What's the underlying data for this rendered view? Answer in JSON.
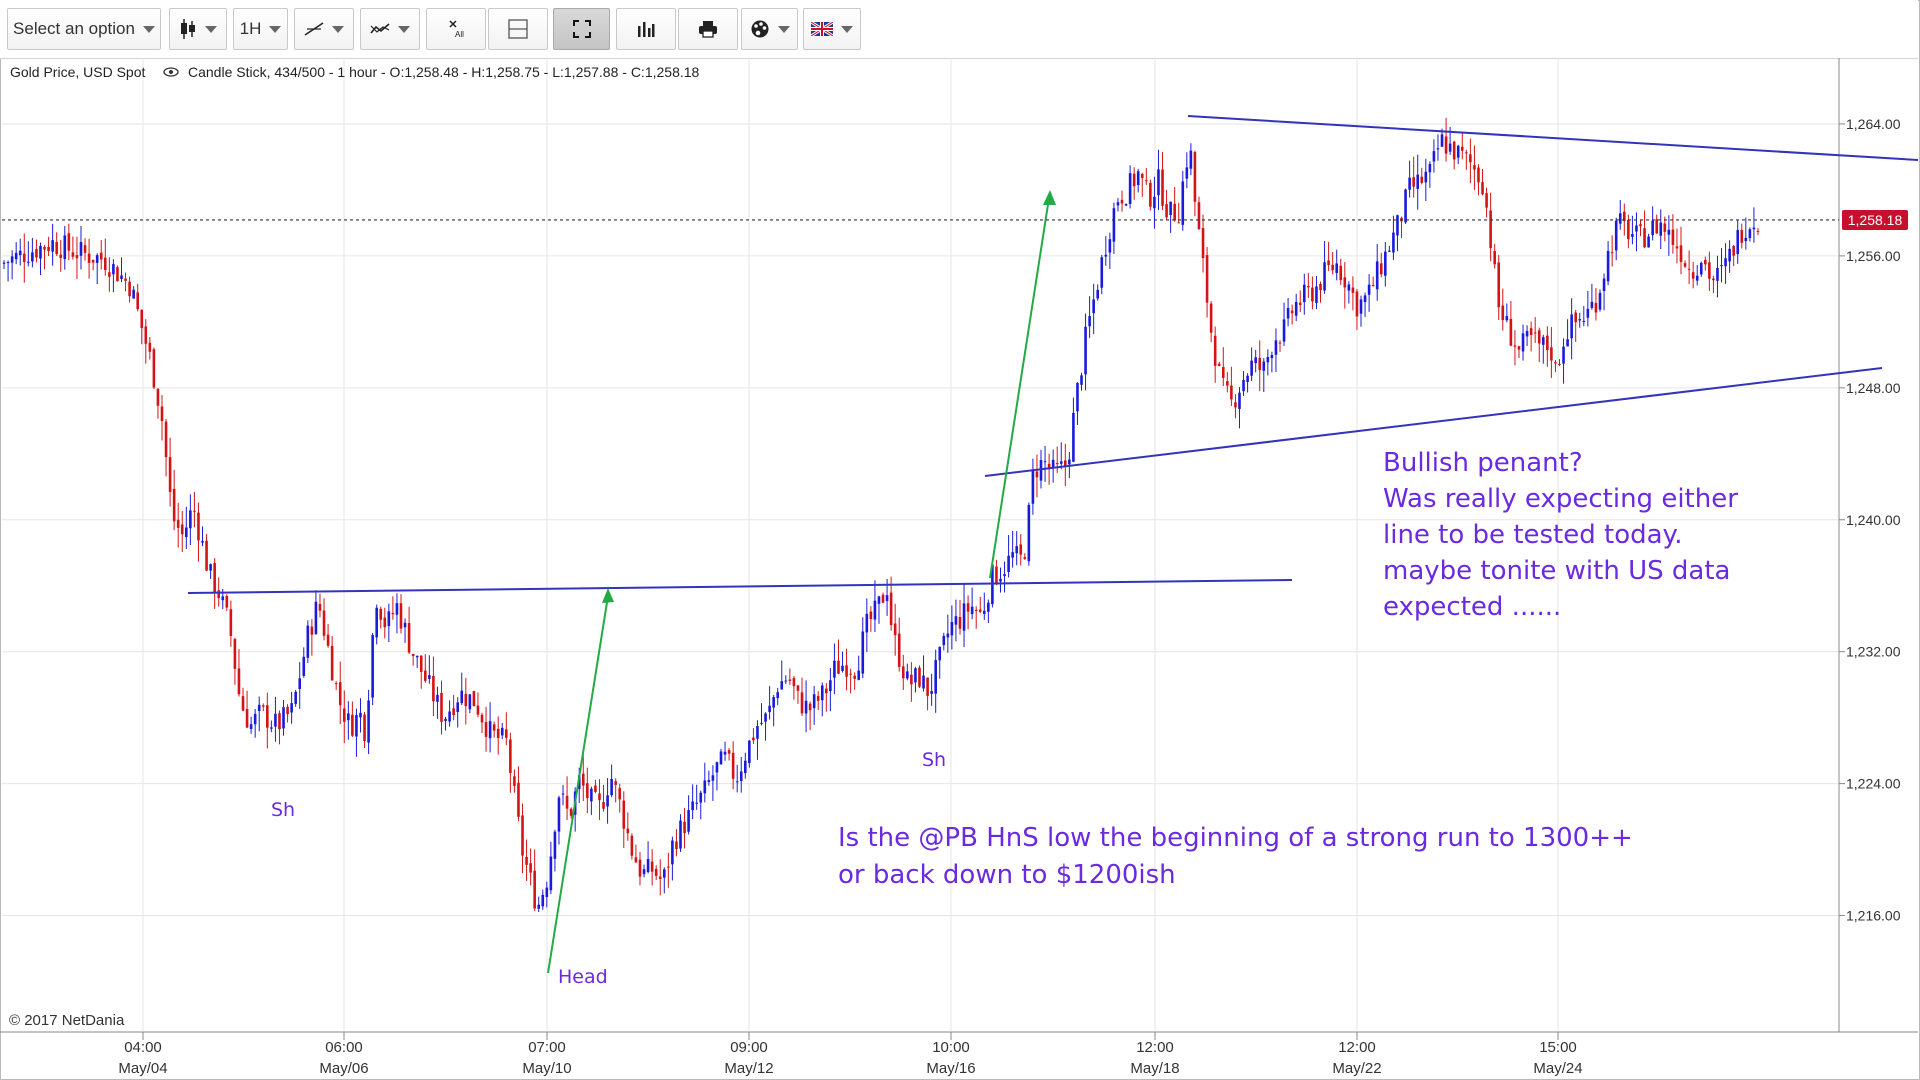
{
  "toolbar": {
    "select_label": "Select an option",
    "interval_label": "1H",
    "icons": [
      "candlestick-type-icon",
      "trendline-icon",
      "indicator-icon",
      "remove-all-icon",
      "crosshair-icon",
      "fullscreen-icon",
      "volume-icon",
      "print-icon",
      "palette-icon",
      "flag-uk-icon"
    ],
    "remove_all_sub": "All"
  },
  "header": {
    "instrument": "Gold Price, USD Spot",
    "info": "Candle Stick, 434/500 - 1 hour - O:1,258.48 - H:1,258.75 - L:1,257.88 - C:1,258.18"
  },
  "copyright": "© 2017 NetDania",
  "chart_data": {
    "type": "candlestick",
    "ylim": [
      1209,
      1268
    ],
    "y_ticks": [
      "1,216.00",
      "1,224.00",
      "1,232.00",
      "1,240.00",
      "1,248.00",
      "1,256.00",
      "1,264.00"
    ],
    "y_tick_values": [
      1216,
      1224,
      1232,
      1240,
      1248,
      1256,
      1264
    ],
    "x_ticks": [
      {
        "time": "04:00",
        "date": "May/04"
      },
      {
        "time": "06:00",
        "date": "May/06"
      },
      {
        "time": "07:00",
        "date": "May/10"
      },
      {
        "time": "09:00",
        "date": "May/12"
      },
      {
        "time": "10:00",
        "date": "May/16"
      },
      {
        "time": "12:00",
        "date": "May/18"
      },
      {
        "time": "12:00",
        "date": "May/22"
      },
      {
        "time": "15:00",
        "date": "May/24"
      }
    ],
    "last_price": "1,258.18",
    "last_price_value": 1258.18,
    "colors": {
      "up": "#1a1adc",
      "down": "#d41414",
      "line": "#3333bb",
      "arrow": "#22aa44",
      "annotation": "#6a2ae0",
      "price_tag": "#c8102e"
    },
    "price_path": [
      [
        0,
        1255.5
      ],
      [
        10,
        1256.2
      ],
      [
        20,
        1256.8
      ],
      [
        30,
        1256.2
      ],
      [
        40,
        1255.8
      ],
      [
        50,
        1254.2
      ],
      [
        58,
        1249.5
      ],
      [
        62,
        1246.2
      ],
      [
        66,
        1240.2
      ],
      [
        70,
        1239.0
      ],
      [
        74,
        1240.8
      ],
      [
        78,
        1238.2
      ],
      [
        80,
        1236.8
      ],
      [
        84,
        1235.5
      ],
      [
        88,
        1233.5
      ],
      [
        92,
        1229.0
      ],
      [
        96,
        1227.5
      ],
      [
        100,
        1228.3
      ],
      [
        106,
        1227.5
      ],
      [
        112,
        1228.4
      ],
      [
        118,
        1233.0
      ],
      [
        122,
        1235.0
      ],
      [
        126,
        1232.0
      ],
      [
        130,
        1229.0
      ],
      [
        134,
        1227.5
      ],
      [
        138,
        1228.2
      ],
      [
        140,
        1227.2
      ],
      [
        144,
        1235.5
      ],
      [
        148,
        1233.5
      ],
      [
        152,
        1234.8
      ],
      [
        158,
        1232.0
      ],
      [
        164,
        1230.0
      ],
      [
        170,
        1228.0
      ],
      [
        176,
        1229.5
      ],
      [
        182,
        1229.0
      ],
      [
        188,
        1227.0
      ],
      [
        194,
        1226.5
      ],
      [
        200,
        1220.0
      ],
      [
        206,
        1216.5
      ],
      [
        210,
        1218.5
      ],
      [
        214,
        1223.5
      ],
      [
        218,
        1222.0
      ],
      [
        222,
        1224.2
      ],
      [
        226,
        1223.0
      ],
      [
        230,
        1222.5
      ],
      [
        234,
        1224.5
      ],
      [
        238,
        1222.5
      ],
      [
        242,
        1220.0
      ],
      [
        246,
        1218.5
      ],
      [
        250,
        1218.8
      ],
      [
        254,
        1218.0
      ],
      [
        258,
        1220.5
      ],
      [
        262,
        1221.5
      ],
      [
        266,
        1222.5
      ],
      [
        270,
        1223.5
      ],
      [
        274,
        1224.8
      ],
      [
        278,
        1225.5
      ],
      [
        282,
        1224.3
      ],
      [
        286,
        1226.0
      ],
      [
        290,
        1227.5
      ],
      [
        294,
        1228.0
      ],
      [
        298,
        1230.0
      ],
      [
        302,
        1230.5
      ],
      [
        306,
        1229.0
      ],
      [
        310,
        1228.5
      ],
      [
        316,
        1229.5
      ],
      [
        320,
        1231.0
      ],
      [
        324,
        1231.3
      ],
      [
        328,
        1231.0
      ],
      [
        332,
        1233.5
      ],
      [
        336,
        1234.5
      ],
      [
        340,
        1236.0
      ],
      [
        342,
        1233.0
      ],
      [
        344,
        1232.0
      ],
      [
        348,
        1230.0
      ],
      [
        352,
        1230.5
      ],
      [
        356,
        1229.5
      ],
      [
        360,
        1231.5
      ],
      [
        364,
        1233.5
      ],
      [
        368,
        1234.0
      ],
      [
        372,
        1234.8
      ],
      [
        376,
        1234.2
      ],
      [
        380,
        1236.5
      ],
      [
        384,
        1237.0
      ],
      [
        388,
        1237.8
      ],
      [
        392,
        1237.5
      ],
      [
        394,
        1240.0
      ],
      [
        396,
        1243.0
      ],
      [
        400,
        1243.5
      ],
      [
        404,
        1242.8
      ],
      [
        408,
        1243.2
      ],
      [
        410,
        1244.5
      ],
      [
        412,
        1247.0
      ],
      [
        416,
        1251.0
      ],
      [
        420,
        1254.0
      ],
      [
        424,
        1257.0
      ],
      [
        428,
        1259.5
      ],
      [
        432,
        1260.0
      ],
      [
        436,
        1261.0
      ],
      [
        440,
        1259.5
      ],
      [
        444,
        1260.5
      ],
      [
        448,
        1258.5
      ],
      [
        452,
        1258.8
      ],
      [
        454,
        1261.5
      ],
      [
        456,
        1262.5
      ],
      [
        458,
        1259.0
      ],
      [
        462,
        1254.0
      ],
      [
        464,
        1251.5
      ],
      [
        468,
        1248.0
      ],
      [
        472,
        1247.0
      ],
      [
        476,
        1248.5
      ],
      [
        480,
        1249.5
      ],
      [
        484,
        1249.0
      ],
      [
        488,
        1251.0
      ],
      [
        492,
        1251.5
      ],
      [
        496,
        1253.0
      ],
      [
        500,
        1253.5
      ],
      [
        504,
        1254.0
      ],
      [
        508,
        1255.0
      ],
      [
        512,
        1255.5
      ],
      [
        516,
        1254.5
      ],
      [
        520,
        1253.0
      ],
      [
        524,
        1253.5
      ],
      [
        528,
        1255.0
      ],
      [
        532,
        1256.5
      ],
      [
        536,
        1258.0
      ],
      [
        540,
        1260.0
      ],
      [
        544,
        1260.5
      ],
      [
        548,
        1261.0
      ],
      [
        552,
        1263.0
      ],
      [
        556,
        1262.5
      ],
      [
        560,
        1262.0
      ],
      [
        564,
        1261.5
      ],
      [
        568,
        1260.5
      ],
      [
        570,
        1258.5
      ],
      [
        574,
        1253.0
      ],
      [
        578,
        1251.5
      ],
      [
        582,
        1250.2
      ],
      [
        586,
        1251.0
      ],
      [
        590,
        1250.5
      ],
      [
        594,
        1250.5
      ],
      [
        596,
        1249.0
      ],
      [
        600,
        1251.5
      ],
      [
        604,
        1252.0
      ],
      [
        608,
        1252.5
      ],
      [
        612,
        1253.5
      ],
      [
        616,
        1256.0
      ],
      [
        620,
        1258.0
      ],
      [
        624,
        1257.5
      ],
      [
        628,
        1257.0
      ],
      [
        632,
        1257.5
      ],
      [
        636,
        1258.0
      ],
      [
        640,
        1257.2
      ],
      [
        644,
        1256.3
      ],
      [
        648,
        1255.0
      ],
      [
        652,
        1256.0
      ],
      [
        656,
        1254.5
      ],
      [
        660,
        1255.0
      ],
      [
        664,
        1256.5
      ],
      [
        668,
        1257.8
      ],
      [
        672,
        1258.18
      ]
    ],
    "annotations": {
      "shoulder_left": "Sh",
      "head": "Head",
      "shoulder_right": "Sh",
      "pennant_note": [
        "Bullish penant?",
        "Was really expecting either",
        "line to be tested today.",
        "maybe tonite with US data",
        "expected ......"
      ],
      "hns_note": [
        "Is the @PB HnS low the beginning of a strong run to 1300++",
        "or back down to $1200ish"
      ]
    }
  }
}
